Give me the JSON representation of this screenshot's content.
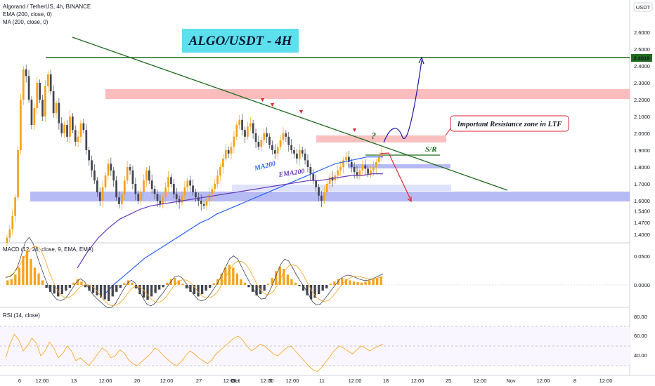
{
  "header": {
    "symbol_line": "Algorand / TetherUS, 4h, BINANCE",
    "ema_legend": "EMA (200, close, 0)",
    "ma_legend": "MA (200, close, 0)",
    "currency_badge": "USDT"
  },
  "title_box": {
    "text": "ALGO/USDT - 4H",
    "color": "#5ce0ee"
  },
  "annotations": {
    "resistance_note": "Important Resistance zone in LTF",
    "sr_label": "S/R",
    "ma200_label": "MA200",
    "ema200_label": "EMA200",
    "question_mark": "?"
  },
  "price_axis": {
    "ticks": [
      "2.6000",
      "2.5000",
      "2.4000",
      "2.3000",
      "2.2000",
      "2.1000",
      "2.0000",
      "1.9000",
      "1.8000",
      "1.7000",
      "1.6000",
      "1.5400",
      "1.4700",
      "1.4000"
    ],
    "current_price": "2.4019"
  },
  "time_axis": {
    "ticks": [
      "6",
      "12:00",
      "13",
      "12:00",
      "20",
      "12:00",
      "27",
      "12:00",
      "Oct",
      "12:00",
      "5",
      "12:00",
      "11",
      "12:00",
      "18",
      "12:00",
      "25",
      "12:00",
      "Nov",
      "12:00",
      "8",
      "12:00"
    ]
  },
  "macd_panel": {
    "legend": "MACD (12, 26, close, 9, EMA, EMA)",
    "ticks": [
      "0.0500",
      "0.0000"
    ]
  },
  "rsi_panel": {
    "legend": "RSI (14, close)",
    "ticks": [
      "80.00",
      "60.00",
      "40.00"
    ]
  },
  "colors": {
    "bull": "#f7a21b",
    "bear": "#434651",
    "ma200": "#2962ff",
    "ema200": "#673ab7",
    "trendline": "#1e6b1e",
    "resistance_zone": "#f9b0b0",
    "support_zone": "#aeb4f5",
    "up_arrow": "#1a1aa6",
    "down_arrow": "#e0252f",
    "marker": "#e0252f",
    "rsi": "#f7a21b"
  },
  "chart_data": {
    "type": "candlestick",
    "price_levels": {
      "horizontal_resistance": 2.4019,
      "sr_level": 1.78
    },
    "price_closes": [
      1.38,
      1.43,
      1.51,
      1.62,
      1.9,
      2.2,
      2.38,
      2.34,
      2.2,
      2.05,
      2.15,
      2.3,
      2.2,
      2.1,
      2.28,
      2.35,
      2.25,
      2.12,
      2.18,
      2.06,
      2.0,
      2.05,
      1.98,
      2.1,
      2.02,
      1.95,
      1.98,
      2.06,
      2.02,
      1.9,
      1.84,
      1.78,
      1.72,
      1.65,
      1.6,
      1.68,
      1.75,
      1.82,
      1.78,
      1.72,
      1.62,
      1.58,
      1.64,
      1.72,
      1.8,
      1.78,
      1.7,
      1.64,
      1.6,
      1.65,
      1.72,
      1.78,
      1.72,
      1.67,
      1.64,
      1.6,
      1.58,
      1.62,
      1.68,
      1.74,
      1.7,
      1.64,
      1.61,
      1.59,
      1.63,
      1.68,
      1.72,
      1.69,
      1.65,
      1.62,
      1.6,
      1.58,
      1.57,
      1.6,
      1.64,
      1.67,
      1.7,
      1.75,
      1.8,
      1.85,
      1.9,
      1.88,
      1.92,
      1.98,
      2.05,
      2.08,
      2.02,
      1.98,
      2.04,
      2.06,
      2.0,
      1.95,
      1.92,
      1.96,
      2.0,
      1.98,
      1.93,
      1.9,
      1.88,
      1.92,
      1.96,
      2.0,
      1.98,
      1.93,
      1.9,
      1.88,
      1.85,
      1.9,
      1.88,
      1.84,
      1.8,
      1.76,
      1.72,
      1.68,
      1.63,
      1.6,
      1.65,
      1.7,
      1.74,
      1.72,
      1.75,
      1.78,
      1.8,
      1.84,
      1.86,
      1.83,
      1.8,
      1.77,
      1.75,
      1.78,
      1.81,
      1.79,
      1.76,
      1.78,
      1.8,
      1.83,
      1.86,
      1.88
    ],
    "ma200": [
      1.05,
      1.1,
      1.14,
      1.18,
      1.22,
      1.26,
      1.29,
      1.32,
      1.35,
      1.38,
      1.41,
      1.44,
      1.47,
      1.49,
      1.52,
      1.54,
      1.56,
      1.58,
      1.6,
      1.62,
      1.64,
      1.66,
      1.68,
      1.7,
      1.72,
      1.74,
      1.76,
      1.78,
      1.8,
      1.82,
      1.83,
      1.84,
      1.85,
      1.86,
      1.86,
      1.86
    ],
    "ema200": [
      1.2,
      1.3,
      1.38,
      1.44,
      1.49,
      1.52,
      1.55,
      1.57,
      1.58,
      1.59,
      1.6,
      1.61,
      1.62,
      1.63,
      1.64,
      1.65,
      1.66,
      1.67,
      1.68,
      1.69,
      1.7,
      1.71,
      1.72,
      1.72,
      1.73,
      1.74,
      1.75,
      1.75,
      1.76,
      1.76
    ],
    "macd_hist": [
      0.008,
      0.01,
      0.018,
      0.03,
      0.05,
      0.06,
      0.045,
      0.03,
      0.02,
      0.008,
      -0.005,
      -0.012,
      -0.015,
      -0.02,
      -0.016,
      -0.01,
      -0.005,
      0.004,
      0.01,
      0.006,
      -0.004,
      -0.01,
      -0.014,
      -0.018,
      -0.022,
      -0.025,
      -0.028,
      -0.02,
      -0.012,
      -0.005,
      0.003,
      0.008,
      0.004,
      -0.006,
      -0.016,
      -0.022,
      -0.026,
      -0.02,
      -0.014,
      -0.008,
      -0.004,
      0.004,
      0.01,
      0.012,
      0.008,
      0.002,
      -0.006,
      -0.012,
      -0.016,
      -0.02,
      -0.016,
      -0.01,
      -0.005,
      0.003,
      0.01,
      0.02,
      0.03,
      0.035,
      0.03,
      0.02,
      0.01,
      0.004,
      -0.004,
      -0.012,
      -0.018,
      -0.016,
      -0.01,
      0.002,
      0.012,
      0.024,
      0.032,
      0.028,
      0.018,
      0.01,
      0.004,
      -0.002,
      -0.01,
      -0.018,
      -0.025,
      -0.022,
      -0.016,
      -0.01,
      -0.006,
      0.002,
      0.006,
      0.01,
      0.012,
      0.01,
      0.008,
      0.006,
      0.005,
      0.004,
      0.006,
      0.008,
      0.01,
      0.012,
      0.014
    ],
    "rsi": [
      48,
      62,
      72,
      66,
      55,
      60,
      68,
      63,
      50,
      55,
      64,
      58,
      48,
      52,
      60,
      55,
      45,
      48,
      44,
      40,
      46,
      52,
      58,
      55,
      48,
      50,
      56,
      53,
      46,
      42,
      40,
      44,
      48,
      52,
      58,
      55,
      50,
      46,
      42,
      40,
      44,
      50,
      55,
      52,
      48,
      45,
      42,
      46,
      52,
      56,
      60,
      64,
      68,
      70,
      66,
      60,
      55,
      58,
      62,
      60,
      56,
      52,
      50,
      54,
      58,
      60,
      55,
      50,
      45,
      40,
      36,
      34,
      38,
      44,
      50,
      56,
      60,
      58,
      55,
      52,
      56,
      60,
      58,
      55,
      58,
      60,
      62
    ],
    "ylim": [
      1.4,
      2.6
    ]
  }
}
